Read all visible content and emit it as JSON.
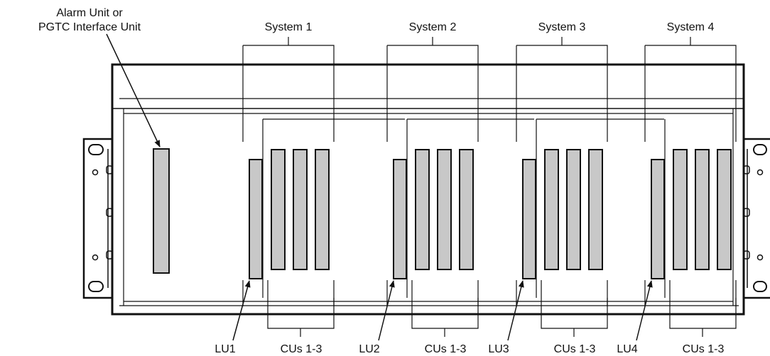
{
  "labels": {
    "alarm_line1": "Alarm Unit or",
    "alarm_line2": "PGTC Interface Unit"
  },
  "systems": [
    {
      "name": "System 1",
      "lu_label": "LU1",
      "cu_label": "CUs 1-3"
    },
    {
      "name": "System 2",
      "lu_label": "LU2",
      "cu_label": "CUs 1-3"
    },
    {
      "name": "System 3",
      "lu_label": "LU3",
      "cu_label": "CUs 1-3"
    },
    {
      "name": "System 4",
      "lu_label": "LU4",
      "cu_label": "CUs 1-3"
    }
  ],
  "colors": {
    "card_fill": "#c8c8c8",
    "line": "#111111"
  }
}
